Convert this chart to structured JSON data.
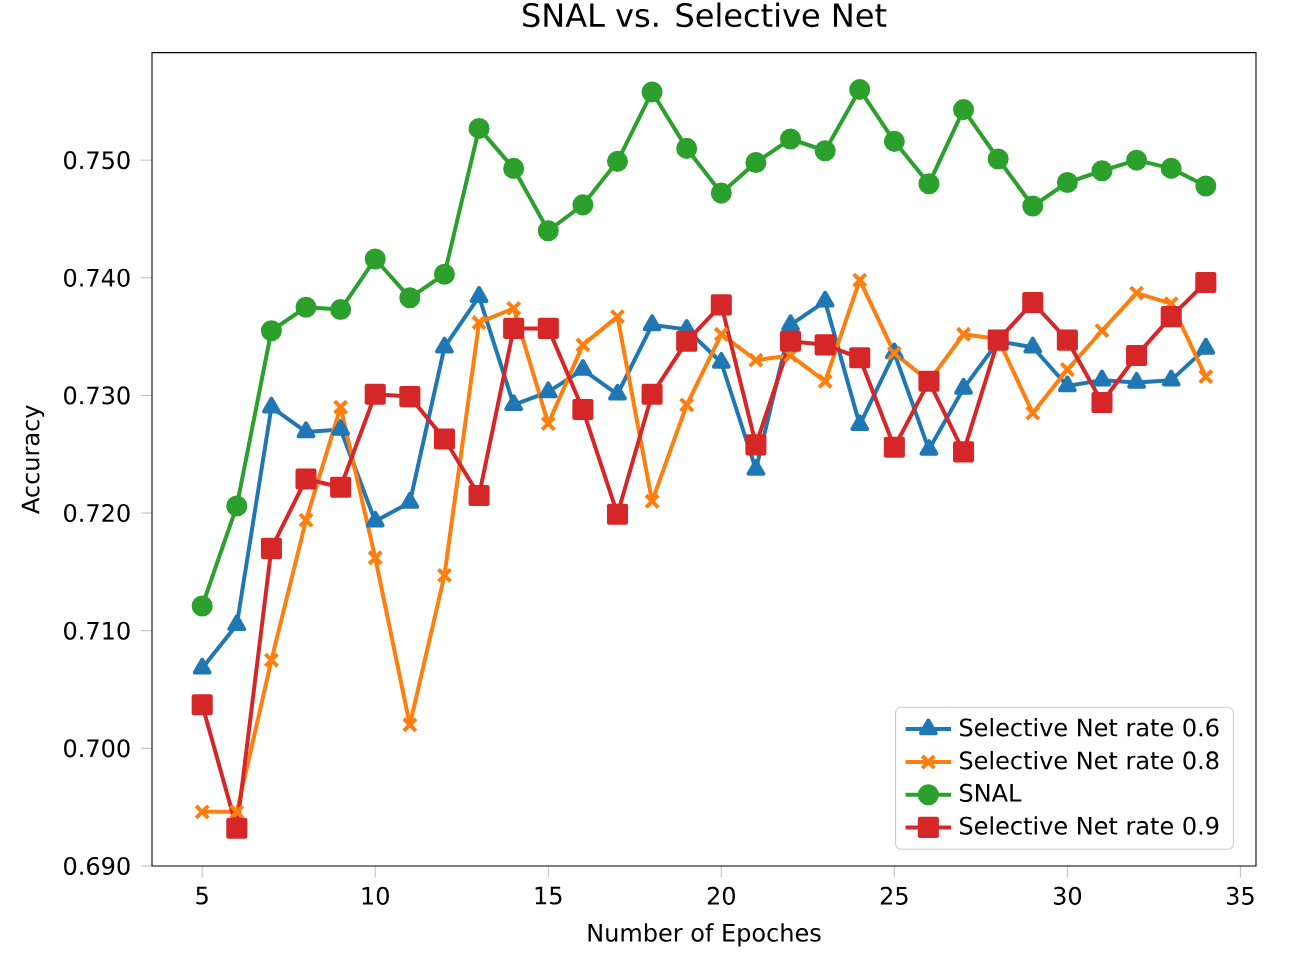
{
  "chart_data": {
    "type": "line",
    "title": "SNAL vs. Selective Net",
    "xlabel": "Number of Epoches",
    "ylabel": "Accuracy",
    "x": [
      5,
      6,
      7,
      8,
      9,
      10,
      11,
      12,
      13,
      14,
      15,
      16,
      17,
      18,
      19,
      20,
      21,
      22,
      23,
      24,
      25,
      26,
      27,
      28,
      29,
      30,
      31,
      32,
      33,
      34
    ],
    "series": [
      {
        "name": "Selective Net rate 0.6",
        "color": "#1f77b4",
        "marker": "triangle",
        "values": [
          0.7068,
          0.7105,
          0.729,
          0.7269,
          0.7271,
          0.7193,
          0.7209,
          0.7341,
          0.7384,
          0.7292,
          0.7303,
          0.7322,
          0.7301,
          0.736,
          0.7356,
          0.7328,
          0.7237,
          0.736,
          0.738,
          0.7275,
          0.7336,
          0.7254,
          0.7306,
          0.7346,
          0.7341,
          0.7308,
          0.7313,
          0.7311,
          0.7313,
          0.734
        ]
      },
      {
        "name": "Selective Net rate 0.8",
        "color": "#ff7f0e",
        "marker": "cross",
        "values": [
          0.6946,
          0.6946,
          0.7075,
          0.7194,
          0.729,
          0.7162,
          0.702,
          0.7147,
          0.7362,
          0.7374,
          0.7276,
          0.7343,
          0.7367,
          0.721,
          0.7292,
          0.7352,
          0.733,
          0.7334,
          0.7312,
          0.7398,
          0.7336,
          0.7312,
          0.7352,
          0.7348,
          0.7285,
          0.7322,
          0.7355,
          0.7387,
          0.7378,
          0.7316
        ]
      },
      {
        "name": "SNAL",
        "color": "#2ca02c",
        "marker": "circle",
        "values": [
          0.7121,
          0.7206,
          0.7355,
          0.7375,
          0.7373,
          0.7416,
          0.7383,
          0.7403,
          0.7527,
          0.7493,
          0.744,
          0.7462,
          0.7499,
          0.7558,
          0.751,
          0.7472,
          0.7498,
          0.7518,
          0.7508,
          0.756,
          0.7516,
          0.748,
          0.7543,
          0.7501,
          0.7461,
          0.7481,
          0.7491,
          0.75,
          0.7493,
          0.7478
        ]
      },
      {
        "name": "Selective Net rate 0.9",
        "color": "#d62728",
        "marker": "square",
        "values": [
          0.7037,
          0.6932,
          0.717,
          0.7229,
          0.7222,
          0.7301,
          0.7299,
          0.7263,
          0.7215,
          0.7357,
          0.7357,
          0.7288,
          0.7199,
          0.7301,
          0.7346,
          0.7377,
          0.7258,
          0.7346,
          0.7343,
          0.7332,
          0.7256,
          0.7312,
          0.7252,
          0.7347,
          0.7379,
          0.7347,
          0.7294,
          0.7334,
          0.7367,
          0.7396
        ]
      }
    ],
    "xlim": [
      3.55,
      35.45
    ],
    "ylim": [
      0.69,
      0.75914
    ],
    "xticks": [
      5,
      10,
      15,
      20,
      25,
      30,
      35
    ],
    "yticks": [
      {
        "value": 0.69,
        "label": "0.690"
      },
      {
        "value": 0.7,
        "label": "0.700"
      },
      {
        "value": 0.71,
        "label": "0.710"
      },
      {
        "value": 0.72,
        "label": "0.720"
      },
      {
        "value": 0.73,
        "label": "0.730"
      },
      {
        "value": 0.74,
        "label": "0.740"
      },
      {
        "value": 0.75,
        "label": "0.750"
      }
    ],
    "legend": "bottom right",
    "line_style": "solid"
  }
}
